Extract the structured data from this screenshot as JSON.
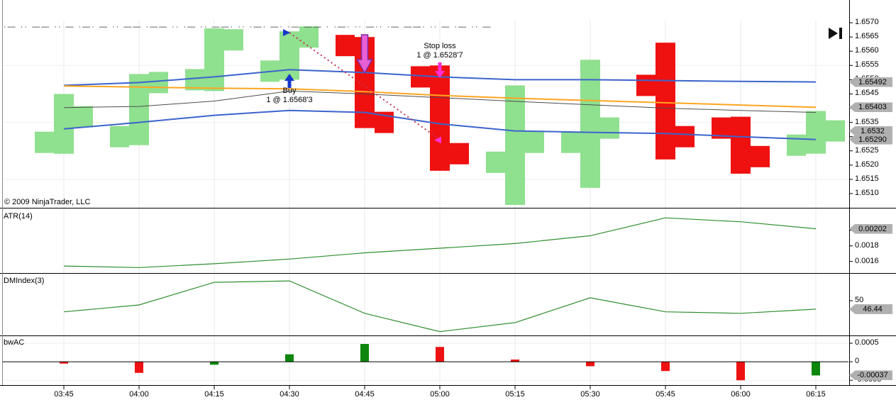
{
  "header": {
    "clipped_text": "·— ·· —— ·· — ·—· — ·· —— ·—— ·· ·— ·· ——· ·· ·—· —· ·— —— · ·—· ·· —·· ·— ——· ·· — ·— ·· — — ·· ·— · —· ·· — ·",
    "jump_icon": "go-to-last-bar"
  },
  "copyright": "© 2009 NinjaTrader, LLC",
  "colors": {
    "up_bar": "#8fe08f",
    "down_bar": "#ef1010",
    "band": "#3c64cc",
    "median": "#ffa520",
    "gray_line": "#4d4d4d",
    "indicator_line": "#2f8f2f",
    "bw_up": "#0c860c",
    "bw_down": "#ee1111",
    "trail": "#c23355",
    "buy_arrow": "#1536cc",
    "stop_arrow": "#ff2dd2",
    "exec_arrow_fill": "#e95fd5",
    "exec_arrow_stroke": "#7d2ba0",
    "marker_bg": "#b0b0b0",
    "grid": "#e9e9e9"
  },
  "time_axis": {
    "labels": [
      "03:45",
      "04:00",
      "04:15",
      "04:30",
      "04:45",
      "05:00",
      "05:15",
      "05:30",
      "05:45",
      "06:00",
      "06:15"
    ]
  },
  "panels": [
    {
      "id": "price"
    },
    {
      "id": "atr",
      "label": "ATR(14)"
    },
    {
      "id": "dmindex",
      "label": "DMIndex(3)"
    },
    {
      "id": "bwac",
      "label": "bwAC"
    }
  ],
  "annotations": {
    "buy": {
      "line1": "Buy",
      "line2": "1 @ 1.6568'3",
      "bar_index": 3
    },
    "stop": {
      "line1": "Stop loss",
      "line2": "1 @ 1.6528'7",
      "bar_index": 5
    },
    "exec_arrow": {
      "bar_index": 4
    },
    "stop_level_marker": {
      "bar_index": 5,
      "price": 1.65288
    },
    "trail": {
      "from_bar": 3,
      "from_price": 1.65665,
      "to_bar": 5,
      "to_price": 1.6529
    }
  },
  "chart_data": [
    {
      "type": "ohlc-bar",
      "panel": "price",
      "categories": [
        "03:45",
        "04:00",
        "04:15",
        "04:30",
        "04:45",
        "05:00",
        "05:15",
        "05:30",
        "05:45",
        "06:00",
        "06:15"
      ],
      "bars": [
        {
          "time": "03:45",
          "open": 1.6528,
          "high": 1.6545,
          "low": 1.6524,
          "close": 1.6537,
          "direction": "up"
        },
        {
          "time": "04:00",
          "open": 1.653,
          "high": 1.6552,
          "low": 1.6527,
          "close": 1.6549,
          "direction": "up"
        },
        {
          "time": "04:15",
          "open": 1.655,
          "high": 1.6568,
          "low": 1.6546,
          "close": 1.6564,
          "direction": "up"
        },
        {
          "time": "04:30",
          "open": 1.6553,
          "high": 1.6567,
          "low": 1.655,
          "close": 1.6565,
          "direction": "up"
        },
        {
          "time": "04:45",
          "open": 1.6562,
          "high": 1.6565,
          "low": 1.6533,
          "close": 1.6535,
          "direction": "down"
        },
        {
          "time": "05:00",
          "open": 1.6551,
          "high": 1.6555,
          "low": 1.6518,
          "close": 1.6524,
          "direction": "down"
        },
        {
          "time": "05:15",
          "open": 1.6521,
          "high": 1.6548,
          "low": 1.6506,
          "close": 1.6528,
          "direction": "up"
        },
        {
          "time": "05:30",
          "open": 1.6528,
          "high": 1.6557,
          "low": 1.6512,
          "close": 1.6533,
          "direction": "up"
        },
        {
          "time": "05:45",
          "open": 1.6548,
          "high": 1.6563,
          "low": 1.6522,
          "close": 1.653,
          "direction": "down"
        },
        {
          "time": "06:00",
          "open": 1.6533,
          "high": 1.6537,
          "low": 1.6517,
          "close": 1.6523,
          "direction": "down"
        },
        {
          "time": "06:15",
          "open": 1.6527,
          "high": 1.6539,
          "low": 1.6524,
          "close": 1.6532,
          "direction": "up"
        }
      ],
      "series": [
        {
          "name": "upper-band",
          "color": "#3c64cc",
          "width": 2,
          "values": [
            1.6548,
            1.6549,
            1.6551,
            1.65535,
            1.65525,
            1.6551,
            1.655,
            1.655,
            1.65497,
            1.65494,
            1.65492
          ]
        },
        {
          "name": "median-orange",
          "color": "#ffa520",
          "width": 2,
          "values": [
            1.65478,
            1.65474,
            1.6547,
            1.65468,
            1.65458,
            1.65445,
            1.65435,
            1.65427,
            1.65419,
            1.65411,
            1.65403
          ]
        },
        {
          "name": "gray-line",
          "color": "#4d4d4d",
          "width": 1,
          "values": [
            1.65402,
            1.65406,
            1.65425,
            1.6546,
            1.6545,
            1.65437,
            1.65424,
            1.65412,
            1.654,
            1.65392,
            1.65385
          ]
        },
        {
          "name": "lower-band",
          "color": "#3c64cc",
          "width": 2,
          "values": [
            1.65327,
            1.6535,
            1.65375,
            1.65392,
            1.65385,
            1.65345,
            1.6532,
            1.65315,
            1.65311,
            1.653,
            1.6529
          ]
        }
      ],
      "ylim": [
        1.6505,
        1.6578
      ],
      "y_ticks": [
        {
          "label": "1.6570",
          "value": 1.657
        },
        {
          "label": "1.6565",
          "value": 1.6565
        },
        {
          "label": "1.6560",
          "value": 1.656
        },
        {
          "label": "1.6555",
          "value": 1.6555
        },
        {
          "label": "1.6550",
          "value": 1.655
        },
        {
          "label": "1.6545",
          "value": 1.6545
        },
        {
          "label": "1.6540",
          "value": 1.654
        },
        {
          "label": "1.6535",
          "value": 1.6535
        },
        {
          "label": "1.6530",
          "value": 1.653
        },
        {
          "label": "1.6525",
          "value": 1.6525
        },
        {
          "label": "1.6520",
          "value": 1.652
        },
        {
          "label": "1.6515",
          "value": 1.6515
        },
        {
          "label": "1.6510",
          "value": 1.651
        }
      ],
      "grid_h": [
        1.6555,
        1.6535,
        1.6515
      ],
      "axis_markers": [
        {
          "label": "1.65492",
          "value": 1.65492
        },
        {
          "label": "1.65403",
          "value": 1.65403
        },
        {
          "label": "1.6532",
          "value": 1.6532
        },
        {
          "label": "1.65290",
          "value": 1.6529
        }
      ]
    },
    {
      "type": "line",
      "panel": "ATR(14)",
      "color": "#2f8f2f",
      "categories": [
        "03:45",
        "04:00",
        "04:15",
        "04:30",
        "04:45",
        "05:00",
        "05:15",
        "05:30",
        "05:45",
        "06:00",
        "06:15"
      ],
      "values": [
        0.00154,
        0.00152,
        0.00157,
        0.00163,
        0.00171,
        0.00177,
        0.00183,
        0.00193,
        0.00216,
        0.00211,
        0.00202
      ],
      "ylim": [
        0.00145,
        0.00229
      ],
      "y_ticks": [
        {
          "label": "0.0020",
          "value": 0.002
        },
        {
          "label": "0.0018",
          "value": 0.0018
        },
        {
          "label": "0.0016",
          "value": 0.0016
        }
      ],
      "axis_markers": [
        {
          "label": "0.00202",
          "value": 0.00202
        }
      ]
    },
    {
      "type": "line",
      "panel": "DMIndex(3)",
      "color": "#2f8f2f",
      "categories": [
        "03:45",
        "04:00",
        "04:15",
        "04:30",
        "04:45",
        "05:00",
        "05:15",
        "05:30",
        "05:45",
        "06:00",
        "06:15"
      ],
      "values": [
        45.3,
        48.2,
        57.7,
        58.3,
        44.7,
        37.0,
        40.8,
        51.2,
        45.3,
        44.7,
        46.44
      ],
      "ylim": [
        35.4,
        61.6
      ],
      "y_ticks": [
        {
          "label": "50",
          "value": 50
        }
      ],
      "axis_markers": [
        {
          "label": "46.44",
          "value": 46.44
        }
      ]
    },
    {
      "type": "bar",
      "panel": "bwAC",
      "categories": [
        "03:45",
        "04:00",
        "04:15",
        "04:30",
        "04:45",
        "05:00",
        "05:15",
        "05:30",
        "05:45",
        "06:00",
        "06:15"
      ],
      "values": [
        -5e-05,
        -0.0003,
        -8e-05,
        0.0002,
        0.00048,
        0.0004,
        6e-05,
        -0.00012,
        -0.00025,
        -0.0005,
        -0.00037
      ],
      "bar_colors": [
        "down",
        "down",
        "up",
        "up",
        "up",
        "down",
        "down",
        "down",
        "down",
        "down",
        "up"
      ],
      "zero_line": true,
      "ylim": [
        -0.00063,
        0.00071
      ],
      "y_ticks": [
        {
          "label": "0.0005",
          "value": 0.0005
        },
        {
          "label": "0",
          "value": 0
        },
        {
          "label": "-0.0005",
          "value": -0.0005
        }
      ],
      "axis_markers": [
        {
          "label": "-0.00037",
          "value": -0.00037
        }
      ]
    }
  ]
}
